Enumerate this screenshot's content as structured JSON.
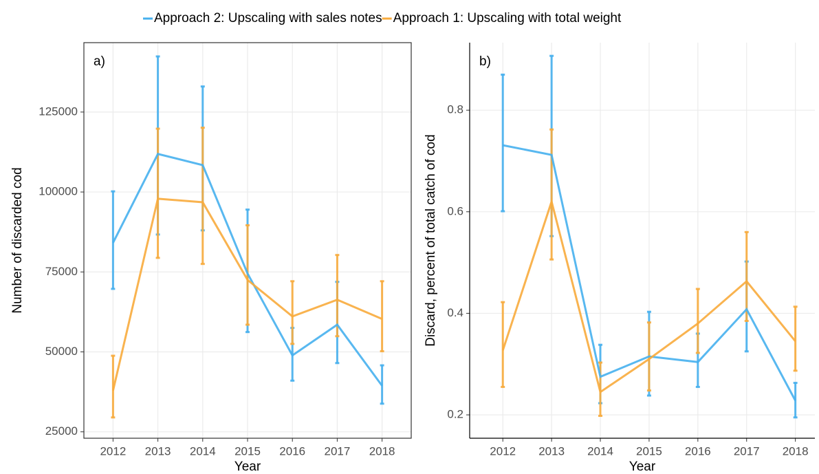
{
  "chart_data": [
    {
      "type": "line",
      "annotation": "a)",
      "y_label": "Number of discarded cod",
      "x_label": "Year",
      "border": true,
      "x": [
        2012,
        2013,
        2014,
        2015,
        2016,
        2017,
        2018
      ],
      "xlim": [
        2011.35,
        2018.65
      ],
      "xticks": [
        2012,
        2013,
        2014,
        2015,
        2016,
        2017,
        2018
      ],
      "ylim": [
        23000,
        146700
      ],
      "yticks": [
        25000,
        50000,
        75000,
        100000,
        125000
      ],
      "grid": true,
      "series": [
        {
          "name": "Approach 2: Upscaling with sales notes",
          "color": "#46b0ee",
          "values": [
            84100,
            111900,
            108400,
            74500,
            48900,
            58500,
            39400
          ],
          "lower": [
            69700,
            86700,
            88000,
            56200,
            41000,
            46500,
            33800
          ],
          "upper": [
            100200,
            142400,
            133000,
            94500,
            57500,
            71900,
            45800
          ]
        },
        {
          "name": "Approach 1: Upscaling with total weight",
          "color": "#f8ab3c",
          "values": [
            37900,
            97900,
            96800,
            72500,
            61100,
            66300,
            60300
          ],
          "lower": [
            29500,
            79400,
            77500,
            58500,
            52500,
            54900,
            50200
          ],
          "upper": [
            48800,
            119800,
            120100,
            89600,
            72100,
            80300,
            72100
          ]
        }
      ]
    },
    {
      "type": "line",
      "annotation": "b)",
      "y_label": "Discard, percent of total catch of cod",
      "x_label": "Year",
      "border": false,
      "x": [
        2012,
        2013,
        2014,
        2015,
        2016,
        2017,
        2018
      ],
      "xlim": [
        2011.32,
        2018.4
      ],
      "xticks": [
        2012,
        2013,
        2014,
        2015,
        2016,
        2017,
        2018
      ],
      "ylim": [
        0.154,
        0.933
      ],
      "yticks": [
        0.2,
        0.4,
        0.6,
        0.8
      ],
      "grid": true,
      "series": [
        {
          "name": "Approach 2: Upscaling with sales notes",
          "color": "#46b0ee",
          "values": [
            0.731,
            0.712,
            0.275,
            0.315,
            0.304,
            0.408,
            0.228
          ],
          "lower": [
            0.601,
            0.552,
            0.223,
            0.238,
            0.255,
            0.325,
            0.195
          ],
          "upper": [
            0.87,
            0.907,
            0.338,
            0.403,
            0.36,
            0.502,
            0.263
          ]
        },
        {
          "name": "Approach 1: Upscaling with total weight",
          "color": "#f8ab3c",
          "values": [
            0.327,
            0.62,
            0.245,
            0.31,
            0.38,
            0.463,
            0.345
          ],
          "lower": [
            0.255,
            0.506,
            0.198,
            0.248,
            0.322,
            0.385,
            0.287
          ],
          "upper": [
            0.422,
            0.762,
            0.303,
            0.382,
            0.448,
            0.56,
            0.413
          ]
        }
      ]
    }
  ]
}
